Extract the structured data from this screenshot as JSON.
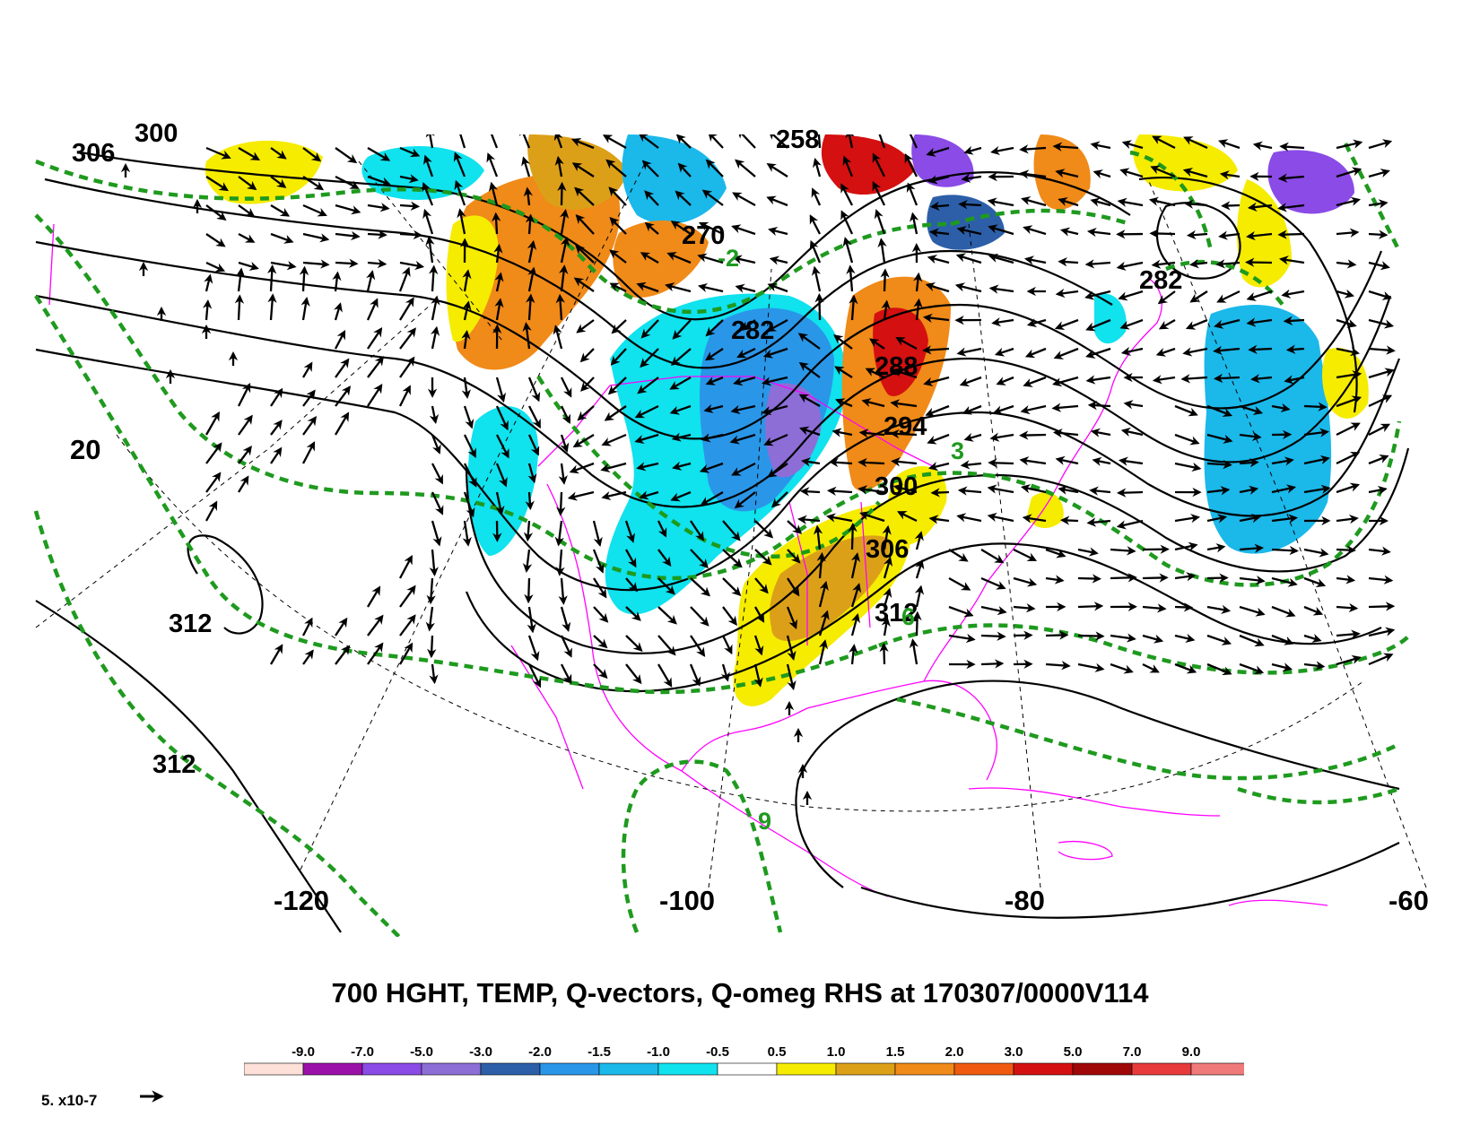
{
  "title": "700 HGHT, TEMP, Q-vectors, Q-omeg RHS at 170307/0000V114",
  "longitude_labels": [
    "-120",
    "-100",
    "-80",
    "-60"
  ],
  "latitude_label": "20",
  "height_labels": [
    "306",
    "300",
    "258",
    "270",
    "282",
    "282",
    "288",
    "294",
    "300",
    "306",
    "312",
    "312",
    "312"
  ],
  "temp_labels": [
    "-2",
    "3",
    "9",
    "6"
  ],
  "legend": {
    "values": [
      "-9.0",
      "-7.0",
      "-5.0",
      "-3.0",
      "-2.0",
      "-1.5",
      "-1.0",
      "-0.5",
      "0.5",
      "1.0",
      "1.5",
      "2.0",
      "3.0",
      "5.0",
      "7.0",
      "9.0"
    ],
    "colors": [
      "#fde0d8",
      "#9b10a8",
      "#8a4be6",
      "#8c6ed6",
      "#2c5fa8",
      "#2a96e8",
      "#1bb8ea",
      "#10e2ee",
      "#ffffff",
      "#f6ec00",
      "#dca018",
      "#f08a18",
      "#f05a10",
      "#d41010",
      "#a00808",
      "#e83a3a",
      "#f07a7a"
    ]
  },
  "vector_scale_label": "5. x10-7",
  "colors": {
    "height_contour": "#000000",
    "temp_contour": "#1e9a1e",
    "coastline": "#ff00ff"
  }
}
